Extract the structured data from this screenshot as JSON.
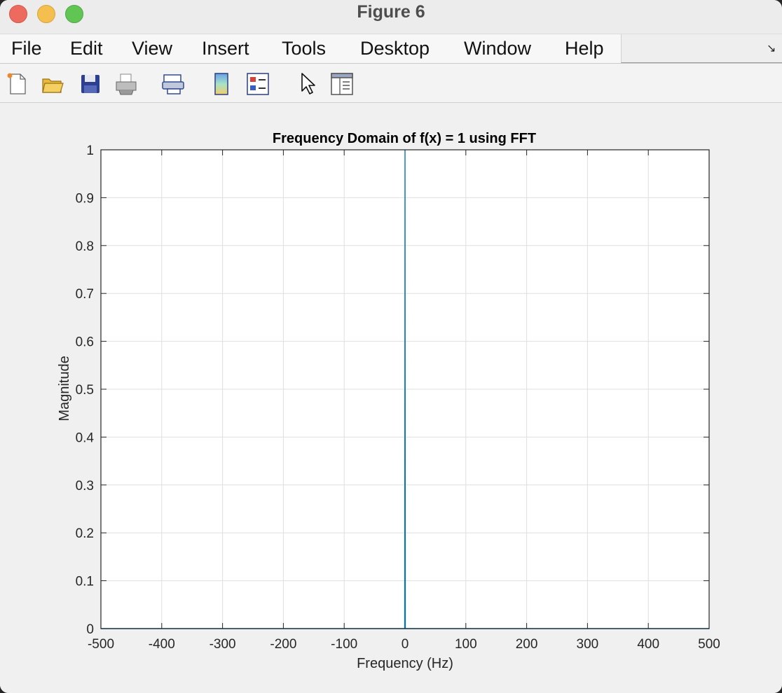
{
  "window": {
    "title": "Figure 6"
  },
  "menu": {
    "items": [
      "File",
      "Edit",
      "View",
      "Insert",
      "Tools",
      "Desktop",
      "Window",
      "Help"
    ]
  },
  "toolbar": {
    "icons": [
      "new-figure-icon",
      "open-file-icon",
      "save-icon",
      "print-icon",
      "link-plot-icon",
      "colorbar-icon",
      "legend-icon",
      "edit-plot-pointer-icon",
      "property-inspector-icon"
    ]
  },
  "colors": {
    "line": "#0072bd",
    "grid": "#dfdfdf",
    "axes": "#262626"
  },
  "chart_data": {
    "type": "line",
    "title": "Frequency Domain of f(x) = 1 using FFT",
    "xlabel": "Frequency (Hz)",
    "ylabel": "Magnitude",
    "xlim": [
      -500,
      500
    ],
    "ylim": [
      0,
      1
    ],
    "xticks": [
      -500,
      -400,
      -300,
      -200,
      -100,
      0,
      100,
      200,
      300,
      400,
      500
    ],
    "yticks": [
      0,
      0.1,
      0.2,
      0.3,
      0.4,
      0.5,
      0.6,
      0.7,
      0.8,
      0.9,
      1
    ],
    "grid": true,
    "series": [
      {
        "x": [
          -500,
          -0.5,
          0,
          0.5,
          500
        ],
        "y": [
          0,
          0,
          1,
          0,
          0
        ]
      }
    ]
  }
}
